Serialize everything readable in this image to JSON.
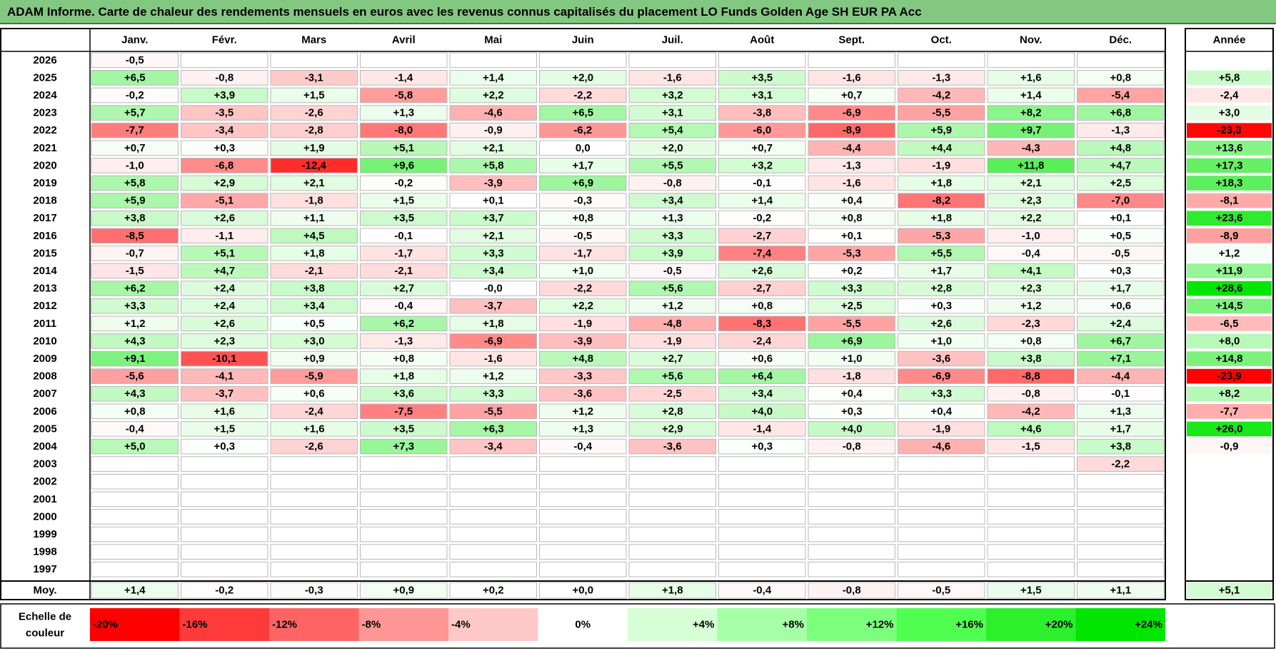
{
  "title": "ADAM Informe. Carte de chaleur des rendements mensuels en euros avec les revenus connus capitalisés du placement LO Funds Golden Age SH EUR PA Acc",
  "chart_data": {
    "type": "heatmap",
    "months": [
      "Janv.",
      "Févr.",
      "Mars",
      "Avril",
      "Mai",
      "Juin",
      "Juil.",
      "Août",
      "Sept.",
      "Oct.",
      "Nov.",
      "Déc."
    ],
    "year_header": "Année",
    "rows": [
      {
        "year": "2026",
        "months": [
          "-0,5",
          "",
          "",
          "",
          "",
          "",
          "",
          "",
          "",
          "",
          "",
          ""
        ],
        "annual": ""
      },
      {
        "year": "2025",
        "months": [
          "+6,5",
          "-0,8",
          "-3,1",
          "-1,4",
          "+1,4",
          "+2,0",
          "-1,6",
          "+3,5",
          "-1,6",
          "-1,3",
          "+1,6",
          "+0,8"
        ],
        "annual": "+5,8"
      },
      {
        "year": "2024",
        "months": [
          "-0,2",
          "+3,9",
          "+1,5",
          "-5,8",
          "+2,2",
          "-2,2",
          "+3,2",
          "+3,1",
          "+0,7",
          "-4,2",
          "+1,4",
          "-5,4"
        ],
        "annual": "-2,4"
      },
      {
        "year": "2023",
        "months": [
          "+5,7",
          "-3,5",
          "-2,6",
          "+1,3",
          "-4,6",
          "+6,5",
          "+3,1",
          "-3,8",
          "-6,9",
          "-5,5",
          "+8,2",
          "+6,8"
        ],
        "annual": "+3,0"
      },
      {
        "year": "2022",
        "months": [
          "-7,7",
          "-3,4",
          "-2,8",
          "-8,0",
          "-0,9",
          "-6,2",
          "+5,4",
          "-6,0",
          "-8,9",
          "+5,9",
          "+9,7",
          "-1,3"
        ],
        "annual": "-23,3"
      },
      {
        "year": "2021",
        "months": [
          "+0,7",
          "+0,3",
          "+1,9",
          "+5,1",
          "+2,1",
          "0,0",
          "+2,0",
          "+0,7",
          "-4,4",
          "+4,4",
          "-4,3",
          "+4,8"
        ],
        "annual": "+13,6"
      },
      {
        "year": "2020",
        "months": [
          "-1,0",
          "-6,8",
          "-12,4",
          "+9,6",
          "+5,8",
          "+1,7",
          "+5,5",
          "+3,2",
          "-1,3",
          "-1,9",
          "+11,8",
          "+4,7"
        ],
        "annual": "+17,3"
      },
      {
        "year": "2019",
        "months": [
          "+5,8",
          "+2,9",
          "+2,1",
          "-0,2",
          "-3,9",
          "+6,9",
          "-0,8",
          "-0,1",
          "-1,6",
          "+1,8",
          "+2,1",
          "+2,5"
        ],
        "annual": "+18,3"
      },
      {
        "year": "2018",
        "months": [
          "+5,9",
          "-5,1",
          "-1,8",
          "+1,5",
          "+0,1",
          "-0,3",
          "+3,4",
          "+1,4",
          "+0,4",
          "-8,2",
          "+2,3",
          "-7,0"
        ],
        "annual": "-8,1"
      },
      {
        "year": "2017",
        "months": [
          "+3,8",
          "+2,6",
          "+1,1",
          "+3,5",
          "+3,7",
          "+0,8",
          "+1,3",
          "-0,2",
          "+0,8",
          "+1,8",
          "+2,2",
          "+0,1"
        ],
        "annual": "+23,6"
      },
      {
        "year": "2016",
        "months": [
          "-8,5",
          "-1,1",
          "+4,5",
          "-0,1",
          "+2,1",
          "-0,5",
          "+3,3",
          "-2,7",
          "+0,1",
          "-5,3",
          "-1,0",
          "+0,5"
        ],
        "annual": "-8,9"
      },
      {
        "year": "2015",
        "months": [
          "-0,7",
          "+5,1",
          "+1,8",
          "-1,7",
          "+3,3",
          "-1,7",
          "+3,9",
          "-7,4",
          "-5,3",
          "+5,5",
          "-0,4",
          "-0,5"
        ],
        "annual": "+1,2"
      },
      {
        "year": "2014",
        "months": [
          "-1,5",
          "+4,7",
          "-2,1",
          "-2,1",
          "+3,4",
          "+1,0",
          "-0,5",
          "+2,6",
          "+0,2",
          "+1,7",
          "+4,1",
          "+0,3"
        ],
        "annual": "+11,9"
      },
      {
        "year": "2013",
        "months": [
          "+6,2",
          "+2,4",
          "+3,8",
          "+2,7",
          "-0,0",
          "-2,2",
          "+5,6",
          "-2,7",
          "+3,3",
          "+2,8",
          "+2,3",
          "+1,7"
        ],
        "annual": "+28,6"
      },
      {
        "year": "2012",
        "months": [
          "+3,3",
          "+2,4",
          "+3,4",
          "-0,4",
          "-3,7",
          "+2,2",
          "+1,2",
          "+0,8",
          "+2,5",
          "+0,3",
          "+1,2",
          "+0,6"
        ],
        "annual": "+14,5"
      },
      {
        "year": "2011",
        "months": [
          "+1,2",
          "+2,6",
          "+0,5",
          "+6,2",
          "+1,8",
          "-1,9",
          "-4,8",
          "-8,3",
          "-5,5",
          "+2,6",
          "-2,3",
          "+2,4"
        ],
        "annual": "-6,5"
      },
      {
        "year": "2010",
        "months": [
          "+4,3",
          "+2,3",
          "+3,0",
          "-1,3",
          "-6,9",
          "-3,9",
          "-1,9",
          "-2,4",
          "+6,9",
          "+1,0",
          "+0,8",
          "+6,7"
        ],
        "annual": "+8,0"
      },
      {
        "year": "2009",
        "months": [
          "+9,1",
          "-10,1",
          "+0,9",
          "+0,8",
          "-1,6",
          "+4,8",
          "+2,7",
          "+0,6",
          "+1,0",
          "-3,6",
          "+3,8",
          "+7,1"
        ],
        "annual": "+14,8"
      },
      {
        "year": "2008",
        "months": [
          "-5,6",
          "-4,1",
          "-5,9",
          "+1,8",
          "+1,2",
          "-3,3",
          "+5,6",
          "+6,4",
          "-1,8",
          "-6,9",
          "-8,8",
          "-4,4"
        ],
        "annual": "-23,9"
      },
      {
        "year": "2007",
        "months": [
          "+4,3",
          "-3,7",
          "+0,6",
          "+3,6",
          "+3,3",
          "-3,6",
          "-2,5",
          "+3,4",
          "+0,4",
          "+3,3",
          "-0,8",
          "-0,1"
        ],
        "annual": "+8,2"
      },
      {
        "year": "2006",
        "months": [
          "+0,8",
          "+1,6",
          "-2,4",
          "-7,5",
          "-5,5",
          "+1,2",
          "+2,8",
          "+4,0",
          "+0,3",
          "+0,4",
          "-4,2",
          "+1,3"
        ],
        "annual": "-7,7"
      },
      {
        "year": "2005",
        "months": [
          "-0,4",
          "+1,5",
          "+1,6",
          "+3,5",
          "+6,3",
          "+1,3",
          "+2,9",
          "-1,4",
          "+4,0",
          "-1,9",
          "+4,6",
          "+1,7"
        ],
        "annual": "+26,0"
      },
      {
        "year": "2004",
        "months": [
          "+5,0",
          "+0,3",
          "-2,6",
          "+7,3",
          "-3,4",
          "-0,4",
          "-3,6",
          "+0,3",
          "-0,8",
          "-4,6",
          "-1,5",
          "+3,8"
        ],
        "annual": "-0,9"
      },
      {
        "year": "2003",
        "months": [
          "",
          "",
          "",
          "",
          "",
          "",
          "",
          "",
          "",
          "",
          "",
          "-2,2"
        ],
        "annual": ""
      },
      {
        "year": "2002",
        "months": [
          "",
          "",
          "",
          "",
          "",
          "",
          "",
          "",
          "",
          "",
          "",
          ""
        ],
        "annual": ""
      },
      {
        "year": "2001",
        "months": [
          "",
          "",
          "",
          "",
          "",
          "",
          "",
          "",
          "",
          "",
          "",
          ""
        ],
        "annual": ""
      },
      {
        "year": "2000",
        "months": [
          "",
          "",
          "",
          "",
          "",
          "",
          "",
          "",
          "",
          "",
          "",
          ""
        ],
        "annual": ""
      },
      {
        "year": "1999",
        "months": [
          "",
          "",
          "",
          "",
          "",
          "",
          "",
          "",
          "",
          "",
          "",
          ""
        ],
        "annual": ""
      },
      {
        "year": "1998",
        "months": [
          "",
          "",
          "",
          "",
          "",
          "",
          "",
          "",
          "",
          "",
          "",
          ""
        ],
        "annual": ""
      },
      {
        "year": "1997",
        "months": [
          "",
          "",
          "",
          "",
          "",
          "",
          "",
          "",
          "",
          "",
          "",
          ""
        ],
        "annual": ""
      }
    ],
    "average": {
      "label": "Moy.",
      "months": [
        "+1,4",
        "-0,2",
        "-0,3",
        "+0,9",
        "+0,2",
        "+0,0",
        "+1,8",
        "-0,4",
        "-0,8",
        "-0,5",
        "+1,5",
        "+1,1"
      ],
      "annual": "+5,1"
    },
    "scale": {
      "label_line1": "Echelle de",
      "label_line2": "couleur",
      "steps": [
        {
          "label": "-20%",
          "value": -20,
          "color": "#ff0000"
        },
        {
          "label": "-16%",
          "value": -16,
          "color": "#ff3a3a"
        },
        {
          "label": "-12%",
          "value": -12,
          "color": "#ff6464"
        },
        {
          "label": "-8%",
          "value": -8,
          "color": "#ff9696"
        },
        {
          "label": "-4%",
          "value": -4,
          "color": "#ffc8c8"
        },
        {
          "label": "0%",
          "value": 0,
          "color": "#ffffff"
        },
        {
          "label": "+4%",
          "value": 4,
          "color": "#d6ffd6"
        },
        {
          "label": "+8%",
          "value": 8,
          "color": "#a6ffa6"
        },
        {
          "label": "+12%",
          "value": 12,
          "color": "#7cff7c"
        },
        {
          "label": "+16%",
          "value": 16,
          "color": "#50ff50"
        },
        {
          "label": "+20%",
          "value": 20,
          "color": "#2cf02c"
        },
        {
          "label": "+24%",
          "value": 24,
          "color": "#00e600"
        }
      ]
    },
    "colors": {
      "title_bg": "#82c880",
      "grid": "#b8b8b8",
      "border": "#000000"
    }
  }
}
